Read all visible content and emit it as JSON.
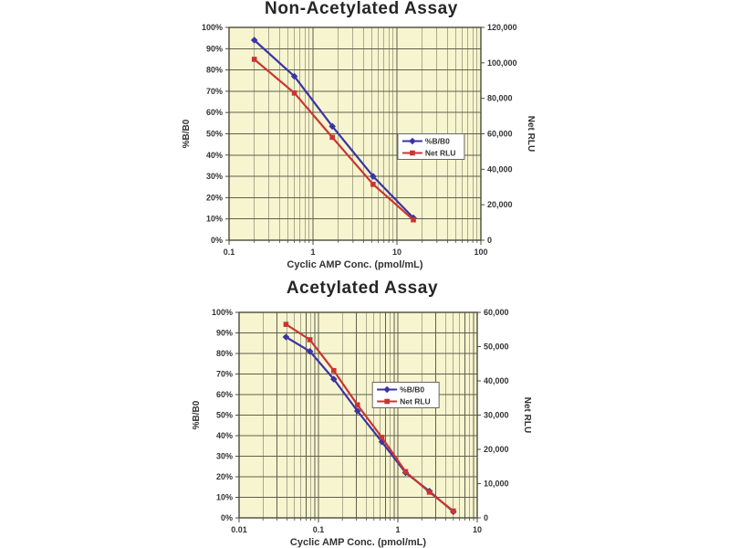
{
  "page": {
    "background": "#ffffff"
  },
  "colors": {
    "plot_bg": "#f7f5cf",
    "grid": "#5f5f4c",
    "border": "#4b4b3b",
    "text": "#333333",
    "title": "#262626",
    "legend_bg": "#ffffff",
    "legend_border": "#666666",
    "blue": "#3a34a4",
    "red": "#cb3431"
  },
  "chart_data": [
    {
      "type": "line",
      "title": "Non-Acetylated Assay",
      "xlabel": "Cyclic AMP Conc. (pmol/mL)",
      "ylabel_left": "%B/B0",
      "ylabel_right": "Net RLU",
      "x_scale": "log",
      "grid": true,
      "xlim": [
        0.1,
        100
      ],
      "x_tick_labels": [
        "0.1",
        "1",
        "10",
        "100"
      ],
      "ylim_left": [
        0,
        100
      ],
      "y_tick_labels_left": [
        "0%",
        "10%",
        "20%",
        "30%",
        "40%",
        "50%",
        "60%",
        "70%",
        "80%",
        "90%",
        "100%"
      ],
      "ylim_right": [
        0,
        120000
      ],
      "y_tick_labels_right": [
        "0",
        "20,000",
        "40,000",
        "60,000",
        "80,000",
        "100,000",
        "120,000"
      ],
      "legend": {
        "position_frac": {
          "x": 0.67,
          "y": 0.5
        },
        "entries": [
          "%B/B0",
          "Net RLU"
        ]
      },
      "series": [
        {
          "name": "%B/B0",
          "axis": "left",
          "color": "#3a34a4",
          "marker": "diamond",
          "x": [
            0.2,
            0.6,
            1.7,
            5.2,
            15.7
          ],
          "y": [
            94,
            77,
            53.5,
            30,
            10.5
          ]
        },
        {
          "name": "Net RLU",
          "axis": "right",
          "color": "#cb3431",
          "marker": "square",
          "x": [
            0.2,
            0.6,
            1.7,
            5.2,
            15.7
          ],
          "y": [
            102000,
            83000,
            58000,
            31500,
            11500
          ]
        }
      ]
    },
    {
      "type": "line",
      "title": "Acetylated Assay",
      "xlabel": "Cyclic AMP Conc. (pmol/mL)",
      "ylabel_left": "%B/B0",
      "ylabel_right": "Net RLU",
      "x_scale": "log",
      "grid": true,
      "xlim": [
        0.01,
        10
      ],
      "x_tick_labels": [
        "0.01",
        "0.1",
        "1",
        "10"
      ],
      "ylim_left": [
        0,
        100
      ],
      "y_tick_labels_left": [
        "0%",
        "10%",
        "20%",
        "30%",
        "40%",
        "50%",
        "60%",
        "70%",
        "80%",
        "90%",
        "100%"
      ],
      "ylim_right": [
        0,
        60000
      ],
      "y_tick_labels_right": [
        "0",
        "10,000",
        "20,000",
        "30,000",
        "40,000",
        "50,000",
        "60,000"
      ],
      "legend": {
        "position_frac": {
          "x": 0.56,
          "y": 0.34
        },
        "entries": [
          "%B/B0",
          "Net RLU"
        ]
      },
      "series": [
        {
          "name": "%B/B0",
          "axis": "left",
          "color": "#3a34a4",
          "marker": "diamond",
          "x": [
            0.039,
            0.078,
            0.156,
            0.31,
            0.63,
            1.25,
            2.5,
            5
          ],
          "y": [
            88,
            81,
            67.5,
            52,
            37,
            22,
            13,
            3
          ]
        },
        {
          "name": "Net RLU",
          "axis": "right",
          "color": "#cb3431",
          "marker": "square",
          "x": [
            0.039,
            0.078,
            0.156,
            0.31,
            0.63,
            1.25,
            2.5,
            5
          ],
          "y": [
            56500,
            52000,
            43000,
            33000,
            23500,
            13500,
            7500,
            2000
          ]
        }
      ]
    }
  ]
}
